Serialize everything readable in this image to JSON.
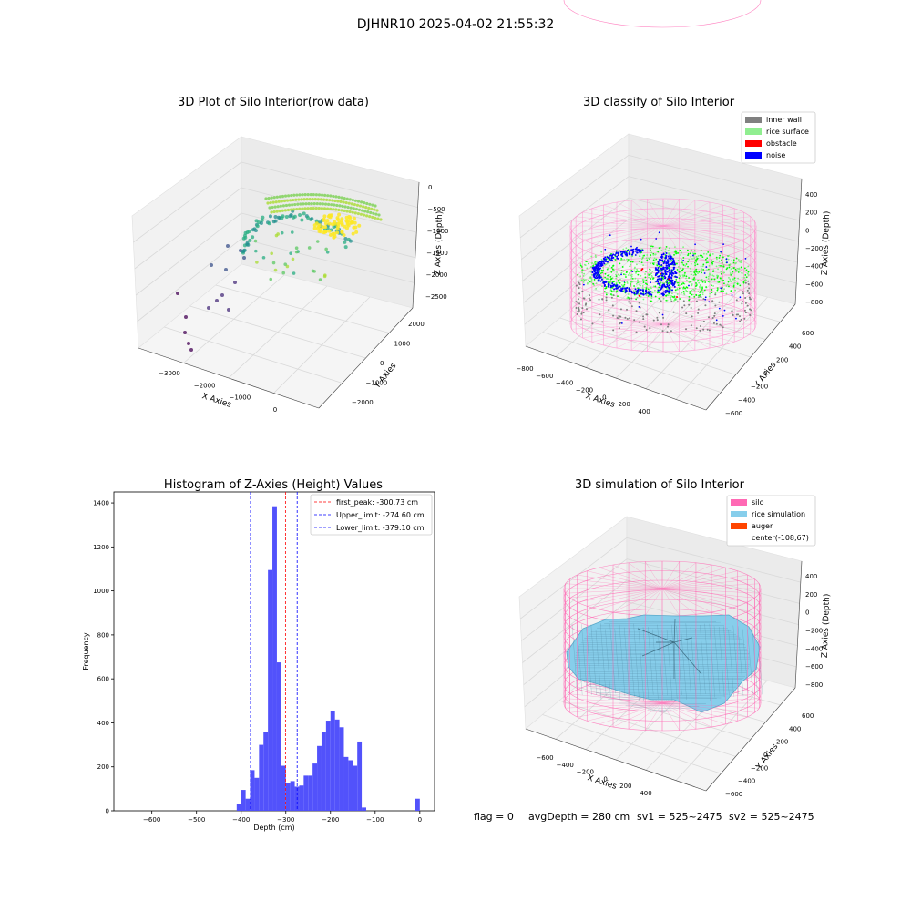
{
  "suptitle": "DJHNR10 2025-04-02 21:55:32",
  "chart_data": [
    {
      "type": "scatter",
      "dims": 3,
      "title": "3D Plot of Silo Interior(row data)",
      "xlabel": "X Axies",
      "ylabel": "Y Axies",
      "zlabel": "Z Axies (Depth)",
      "xticks": [
        "−3000",
        "−2000",
        "−1000",
        "0"
      ],
      "yticks": [
        "−2000",
        "−1000",
        "0",
        "1000",
        "2000"
      ],
      "zticks": [
        "0",
        "−500",
        "−1000",
        "−1500",
        "−2000",
        "−2500"
      ],
      "colormap": "viridis"
    },
    {
      "type": "scatter",
      "dims": 3,
      "title": "3D classify of Silo Interior",
      "xlabel": "X Axies",
      "ylabel": "Y Axies",
      "zlabel": "Z Axies (Depth)",
      "xticks": [
        "−800",
        "−600",
        "−400",
        "−200",
        "0",
        "200",
        "400"
      ],
      "yticks": [
        "−600",
        "−400",
        "−200",
        "0",
        "200",
        "400",
        "600"
      ],
      "zticks": [
        "400",
        "200",
        "0",
        "−200",
        "−400",
        "−600",
        "−800"
      ],
      "legend": [
        {
          "label": "inner wall",
          "color": "#808080"
        },
        {
          "label": "rice surface",
          "color": "#90ee90"
        },
        {
          "label": "obstacle",
          "color": "#ff0000"
        },
        {
          "label": "noise",
          "color": "#0000ff"
        }
      ],
      "legend_position": "top-right"
    },
    {
      "type": "bar",
      "title": "Histogram of Z-Axies (Height) Values",
      "xlabel": "Depth (cm)",
      "ylabel": "Frequency",
      "xlim": [
        -685,
        33
      ],
      "ylim": [
        0,
        1450
      ],
      "xticks": [
        -600,
        -500,
        -400,
        -300,
        -200,
        -100,
        0
      ],
      "xtick_labels": [
        "−600",
        "−500",
        "−400",
        "−300",
        "−200",
        "−100",
        "0"
      ],
      "yticks": [
        0,
        200,
        400,
        600,
        800,
        1000,
        1200,
        1400
      ],
      "bin_width": 10,
      "bars": [
        {
          "x": -405,
          "y": 30
        },
        {
          "x": -395,
          "y": 95
        },
        {
          "x": -385,
          "y": 55
        },
        {
          "x": -375,
          "y": 185
        },
        {
          "x": -365,
          "y": 150
        },
        {
          "x": -355,
          "y": 300
        },
        {
          "x": -345,
          "y": 360
        },
        {
          "x": -335,
          "y": 1095
        },
        {
          "x": -325,
          "y": 1385
        },
        {
          "x": -315,
          "y": 675
        },
        {
          "x": -305,
          "y": 205
        },
        {
          "x": -295,
          "y": 125
        },
        {
          "x": -285,
          "y": 135
        },
        {
          "x": -275,
          "y": 110
        },
        {
          "x": -265,
          "y": 115
        },
        {
          "x": -255,
          "y": 160
        },
        {
          "x": -245,
          "y": 160
        },
        {
          "x": -235,
          "y": 215
        },
        {
          "x": -225,
          "y": 295
        },
        {
          "x": -215,
          "y": 360
        },
        {
          "x": -205,
          "y": 410
        },
        {
          "x": -195,
          "y": 455
        },
        {
          "x": -185,
          "y": 415
        },
        {
          "x": -175,
          "y": 380
        },
        {
          "x": -165,
          "y": 245
        },
        {
          "x": -155,
          "y": 230
        },
        {
          "x": -145,
          "y": 205
        },
        {
          "x": -135,
          "y": 315
        },
        {
          "x": -125,
          "y": 15
        },
        {
          "x": -5,
          "y": 55
        }
      ],
      "bar_color": "#4f4ffb",
      "vlines": [
        {
          "label": "first_peak: -300.73 cm",
          "x": -300.73,
          "color": "#ff0000"
        },
        {
          "label": "Upper_limit: -274.60 cm",
          "x": -274.6,
          "color": "#0000ff"
        },
        {
          "label": "Lower_limit: -379.10 cm",
          "x": -379.1,
          "color": "#0000ff"
        }
      ],
      "legend_position": "top-right"
    },
    {
      "type": "surface",
      "dims": 3,
      "title": "3D simulation of Silo Interior",
      "xlabel": "X Axies",
      "ylabel": "Y Axies",
      "zlabel": "Z Axies (Depth)",
      "xticks": [
        "−600",
        "−400",
        "−200",
        "0",
        "200",
        "400"
      ],
      "yticks": [
        "−600",
        "−400",
        "−200",
        "0",
        "200",
        "400",
        "600"
      ],
      "zticks": [
        "400",
        "200",
        "0",
        "−200",
        "−400",
        "−600",
        "−800"
      ],
      "legend": [
        {
          "label": "silo",
          "color": "#ff69b4"
        },
        {
          "label": "rice simulation",
          "color": "#87ceeb"
        },
        {
          "label": "auger",
          "color": "#ff4500"
        },
        {
          "label": "center(-108,67)",
          "color": "none"
        }
      ],
      "legend_position": "top-right"
    }
  ],
  "status": {
    "flag": "flag = 0",
    "avg": "avgDepth = 280 cm",
    "sv1": "sv1 = 525~2475",
    "sv2": "sv2 = 525~2475"
  }
}
